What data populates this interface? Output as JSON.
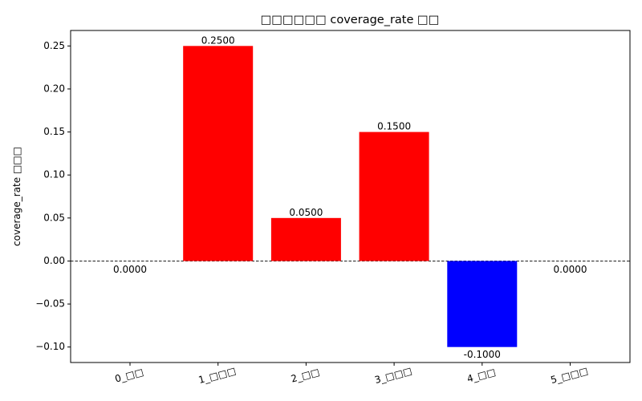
{
  "chart_data": {
    "type": "bar",
    "title": "□□□□□□ coverage_rate □□",
    "xlabel": "",
    "ylabel": "coverage_rate □□□",
    "categories": [
      "0_□□",
      "1_□□□",
      "2_□□",
      "3_□□□",
      "4_□□",
      "5_□□□"
    ],
    "values": [
      0.0,
      0.25,
      0.05,
      0.15,
      -0.1,
      0.0
    ],
    "value_labels": [
      "0.0000",
      "0.2500",
      "0.0500",
      "0.1500",
      "-0.1000",
      "0.0000"
    ],
    "ylim": [
      -0.118,
      0.268
    ],
    "yticks": [
      -0.1,
      -0.05,
      0.0,
      0.05,
      0.1,
      0.15,
      0.2,
      0.25
    ],
    "ytick_labels": [
      "−0.10",
      "−0.05",
      "0.00",
      "0.05",
      "0.10",
      "0.15",
      "0.20",
      "0.25"
    ],
    "reference_line": 0,
    "colors": {
      "positive": "#ff0000",
      "negative": "#0000ff",
      "axis": "#000000"
    }
  }
}
